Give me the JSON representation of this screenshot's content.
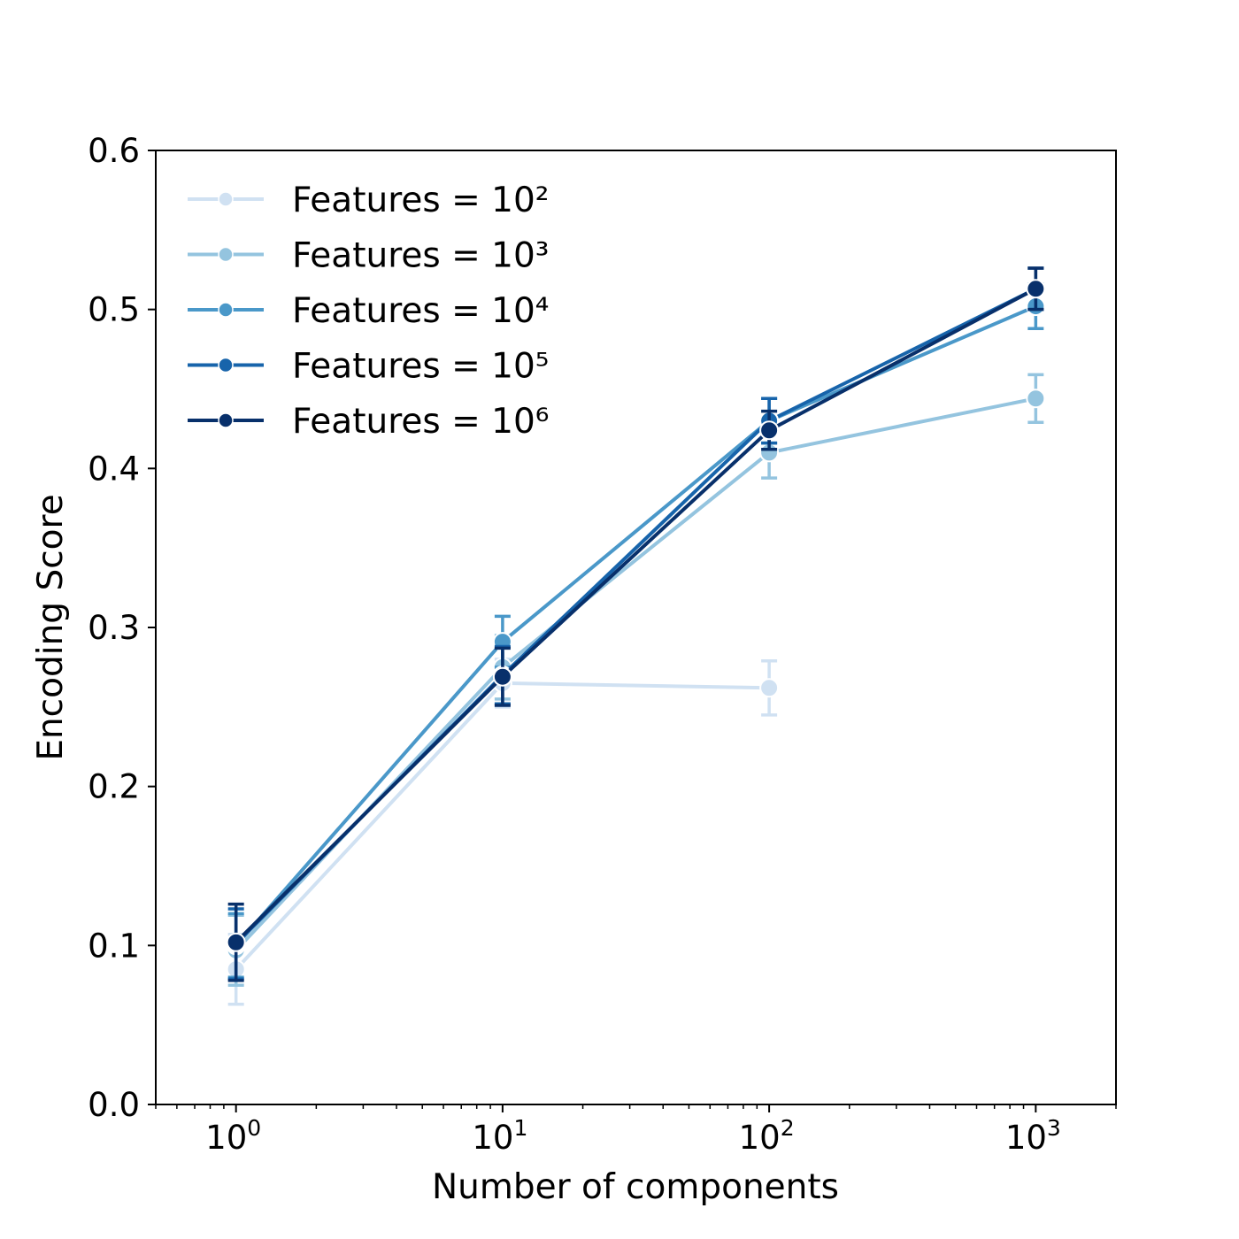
{
  "chart_data": {
    "type": "line",
    "xlabel": "Number of components",
    "ylabel": "Encoding Score",
    "xscale": "log",
    "xlim": [
      0.5,
      2000
    ],
    "ylim": [
      0.0,
      0.6
    ],
    "x_ticks": [
      {
        "value": 1,
        "base": "10",
        "exp": "0"
      },
      {
        "value": 10,
        "base": "10",
        "exp": "1"
      },
      {
        "value": 100,
        "base": "10",
        "exp": "2"
      },
      {
        "value": 1000,
        "base": "10",
        "exp": "3"
      }
    ],
    "y_ticks": [
      "0.0",
      "0.1",
      "0.2",
      "0.3",
      "0.4",
      "0.5",
      "0.6"
    ],
    "grid": false,
    "legend_position": "top-left",
    "series": [
      {
        "name": "Features = 10²",
        "color": "#d0e1f2",
        "x": [
          1,
          10,
          100
        ],
        "y": [
          0.085,
          0.265,
          0.262
        ],
        "err": [
          0.022,
          0.015,
          0.017
        ]
      },
      {
        "name": "Features = 10³",
        "color": "#94c4df",
        "x": [
          1,
          10,
          100,
          1000
        ],
        "y": [
          0.097,
          0.275,
          0.41,
          0.444
        ],
        "err": [
          0.022,
          0.02,
          0.016,
          0.015
        ]
      },
      {
        "name": "Features = 10⁴",
        "color": "#4a98c9",
        "x": [
          1,
          10,
          100,
          1000
        ],
        "y": [
          0.1,
          0.291,
          0.43,
          0.502
        ],
        "err": [
          0.02,
          0.016,
          0.014,
          0.014
        ]
      },
      {
        "name": "Features = 10⁵",
        "color": "#1764ab",
        "x": [
          1,
          10,
          100,
          1000
        ],
        "y": [
          0.101,
          0.27,
          0.43,
          0.513
        ],
        "err": [
          0.022,
          0.018,
          0.014,
          0.013
        ]
      },
      {
        "name": "Features = 10⁶",
        "color": "#08306b",
        "x": [
          1,
          10,
          100,
          1000
        ],
        "y": [
          0.102,
          0.269,
          0.424,
          0.513
        ],
        "err": [
          0.024,
          0.018,
          0.012,
          0.013
        ]
      }
    ]
  }
}
